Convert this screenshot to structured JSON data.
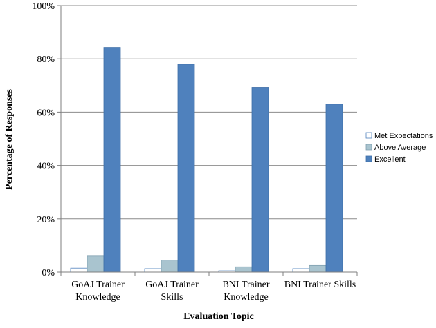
{
  "chart_data": {
    "type": "bar",
    "xlabel": "Evaluation Topic",
    "ylabel": "Percentage of Responses",
    "ylim": [
      0,
      100
    ],
    "yticks": [
      0,
      20,
      40,
      60,
      80,
      100
    ],
    "ytick_suffix": "%",
    "grid": "horizontal",
    "legend_position": "right",
    "categories": [
      [
        "GoAJ Trainer",
        "Knowledge"
      ],
      [
        "GoAJ Trainer",
        "Skills"
      ],
      [
        "BNI Trainer",
        "Knowledge"
      ],
      [
        "BNI Trainer Skills"
      ]
    ],
    "series": [
      {
        "name": "Met Expectations",
        "values": [
          1.5,
          1.3,
          0.5,
          1.3
        ],
        "color": "#ffffff",
        "stroke": "#4f81bd"
      },
      {
        "name": "Above Average",
        "values": [
          6.0,
          4.5,
          2.0,
          2.5
        ],
        "color": "#a9c4cf",
        "stroke": "#7f9faf"
      },
      {
        "name": "Excellent",
        "values": [
          84.3,
          78.0,
          69.3,
          63.0
        ],
        "color": "#4f81bd",
        "stroke": "#3f6fa8"
      }
    ]
  }
}
